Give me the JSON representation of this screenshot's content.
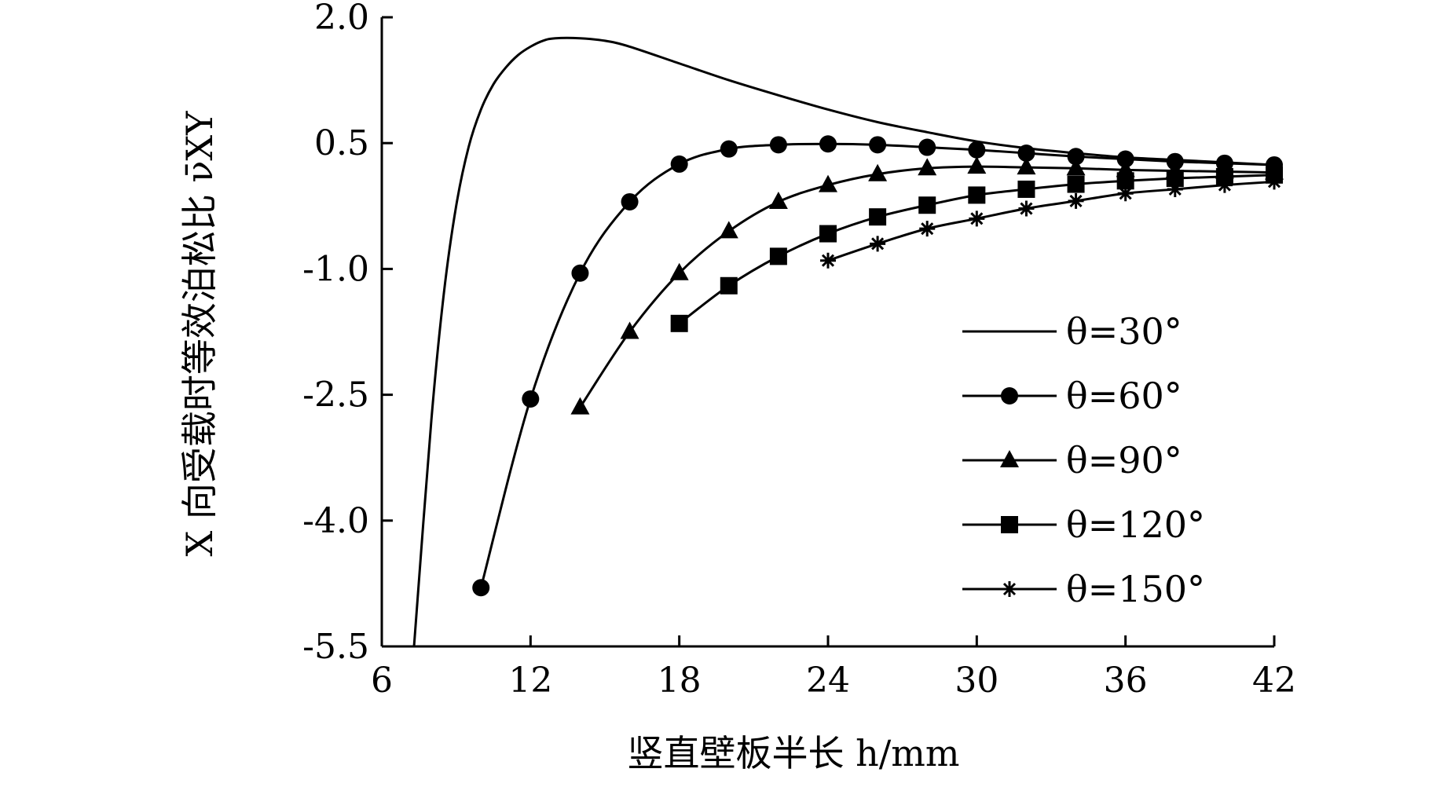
{
  "chart_data": {
    "type": "line",
    "xlabel": "竖直壁板半长 h/mm",
    "ylabel": "X 向受载时等效泊松比 ν̄XY",
    "xlim": [
      6,
      42
    ],
    "ylim": [
      -5.5,
      2.0
    ],
    "xticks": [
      6,
      12,
      18,
      24,
      30,
      36,
      42
    ],
    "xtick_labels": [
      "6",
      "12",
      "18",
      "24",
      "30",
      "36",
      "42"
    ],
    "yticks": [
      2.0,
      0.5,
      -1.0,
      -2.5,
      -4.0,
      -5.5
    ],
    "ytick_labels": [
      "2.0",
      "0.5",
      "-1.0",
      "-2.5",
      "-4.0",
      "-5.5"
    ],
    "grid": false,
    "legend_position": "right",
    "series": [
      {
        "name": "θ=30°",
        "marker": "none",
        "x": [
          7.3,
          8,
          8.5,
          9,
          9.5,
          10,
          10.5,
          11,
          11.5,
          12,
          12.5,
          13,
          14,
          15,
          16,
          18,
          20,
          22,
          24,
          26,
          28,
          30,
          32,
          34,
          36,
          38,
          40,
          42
        ],
        "y": [
          -5.5,
          -2.8,
          -1.3,
          -0.25,
          0.45,
          0.9,
          1.2,
          1.4,
          1.55,
          1.65,
          1.72,
          1.75,
          1.75,
          1.72,
          1.65,
          1.45,
          1.25,
          1.07,
          0.9,
          0.75,
          0.63,
          0.52,
          0.44,
          0.38,
          0.33,
          0.3,
          0.27,
          0.24
        ]
      },
      {
        "name": "θ=60°",
        "marker": "circle",
        "x": [
          10,
          12,
          14,
          16,
          18,
          20,
          22,
          24,
          26,
          28,
          30,
          32,
          34,
          36,
          38,
          40,
          42
        ],
        "y": [
          -4.8,
          -2.55,
          -1.05,
          -0.2,
          0.25,
          0.43,
          0.48,
          0.49,
          0.48,
          0.45,
          0.42,
          0.38,
          0.34,
          0.31,
          0.28,
          0.26,
          0.24
        ]
      },
      {
        "name": "θ=90°",
        "marker": "triangle",
        "x": [
          14,
          16,
          18,
          20,
          22,
          24,
          26,
          28,
          30,
          32,
          34,
          36,
          38,
          40,
          42
        ],
        "y": [
          -2.65,
          -1.75,
          -1.05,
          -0.55,
          -0.2,
          0.0,
          0.13,
          0.2,
          0.22,
          0.21,
          0.2,
          0.18,
          0.17,
          0.16,
          0.15
        ]
      },
      {
        "name": "θ=120°",
        "marker": "square",
        "x": [
          18,
          20,
          22,
          24,
          26,
          28,
          30,
          32,
          34,
          36,
          38,
          40,
          42
        ],
        "y": [
          -1.65,
          -1.2,
          -0.85,
          -0.58,
          -0.38,
          -0.24,
          -0.12,
          -0.05,
          0.01,
          0.05,
          0.08,
          0.1,
          0.12
        ]
      },
      {
        "name": "θ=150°",
        "marker": "asterisk",
        "x": [
          24,
          26,
          28,
          30,
          32,
          34,
          36,
          38,
          40,
          42
        ],
        "y": [
          -0.9,
          -0.7,
          -0.52,
          -0.4,
          -0.28,
          -0.19,
          -0.1,
          -0.05,
          0.0,
          0.04
        ]
      }
    ]
  }
}
